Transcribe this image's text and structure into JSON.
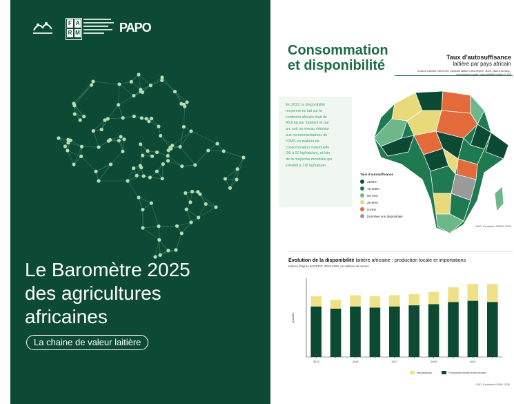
{
  "cover": {
    "title_lines": [
      "Le Baromètre 2025",
      "des agricultures",
      "africaines"
    ],
    "subtitle": "La chaine de valeur laitière",
    "logos": {
      "farm": [
        "F",
        "A",
        "R",
        "M"
      ],
      "papo": "PAPO"
    }
  },
  "spread": {
    "title_lines": [
      "Consommation",
      "et disponibilité"
    ],
    "map": {
      "title": "Taux d'autosuffisance",
      "subtitle": "laitière par pays africain",
      "source": "Indices d'après FAOSTAT, produits laitiers hors beurre, 2022, calcul du taux : (production locale / disponibilité totale) X 100"
    },
    "intro": "En 2022, la disponibilité moyenne en lait sur le continent africain était de 45,6 kg par habitant et par an, soit un niveau inférieur aux recommandations de l'OMS en matière de consommation individuelle (90 à 90 kg/hab/an), et loin de la moyenne mondiale qui s'établit à 118 kg/hab/an.",
    "legend": {
      "title": "Taux d'autosuffisance",
      "items": [
        {
          "label": "≥100%",
          "color": "#0d4a34"
        },
        {
          "label": "75-100%",
          "color": "#1f7a52"
        },
        {
          "label": "50-75%",
          "color": "#6cb88a"
        },
        {
          "label": "25-50%",
          "color": "#e8d97a"
        },
        {
          "label": "0-25%",
          "color": "#e36a3a"
        },
        {
          "label": "Données non disponibles",
          "color": "#9a9a9a"
        }
      ]
    },
    "map_credit": "FAO, Fondation FARM, 2025"
  },
  "chart_data": {
    "type": "bar",
    "title_bold": "Évolution de la disponibilité",
    "title_rest": " laitière africaine : production locale et importations",
    "subtitle": "Indices d'après FAOSTAT, 2013-2022, en millions de tonnes",
    "ylabel": "Quantité",
    "xlabel": "",
    "categories": [
      "2013",
      "2014",
      "2015",
      "2016",
      "2017",
      "2018",
      "2019",
      "2020",
      "2021",
      "2022"
    ],
    "x_tick_labels": [
      "2013",
      "",
      "2015",
      "",
      "2017",
      "",
      "2019",
      "",
      "2021",
      ""
    ],
    "series": [
      {
        "name": "Production locale (hors beurre)",
        "color": "#0d4a34",
        "values": [
          45,
          43,
          45,
          44,
          45,
          46,
          47,
          49,
          50,
          49
        ]
      },
      {
        "name": "Importations",
        "color": "#efe08a",
        "values": [
          9,
          8,
          10,
          10,
          10,
          10,
          11,
          13,
          15,
          16
        ]
      }
    ],
    "ylim": [
      0,
      70
    ],
    "grid": false,
    "legend_position": "bottom",
    "credit": "FAO, Fondation FARM, 2025"
  }
}
